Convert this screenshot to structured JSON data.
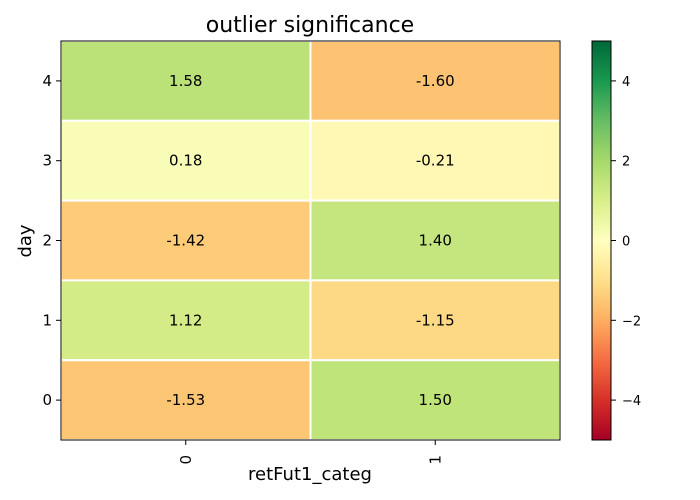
{
  "chart_data": {
    "type": "heatmap",
    "title": "outlier significance",
    "xlabel": "retFut1_categ",
    "ylabel": "day",
    "x_categories": [
      "0",
      "1"
    ],
    "y_categories": [
      "4",
      "3",
      "2",
      "1",
      "0"
    ],
    "values": [
      [
        1.58,
        -1.6
      ],
      [
        0.18,
        -0.21
      ],
      [
        -1.42,
        1.4
      ],
      [
        1.12,
        -1.15
      ],
      [
        -1.53,
        1.5
      ]
    ],
    "value_labels": [
      [
        "1.58",
        "-1.60"
      ],
      [
        "0.18",
        "-0.21"
      ],
      [
        "-1.42",
        "1.40"
      ],
      [
        "1.12",
        "-1.15"
      ],
      [
        "-1.53",
        "1.50"
      ]
    ],
    "colormap": "RdYlGn",
    "colorbar": {
      "range": [
        -5,
        5
      ],
      "ticks": [
        4,
        2,
        0,
        -2,
        -4
      ],
      "tick_labels": [
        "4",
        "2",
        "0",
        "−2",
        "−4"
      ]
    }
  }
}
